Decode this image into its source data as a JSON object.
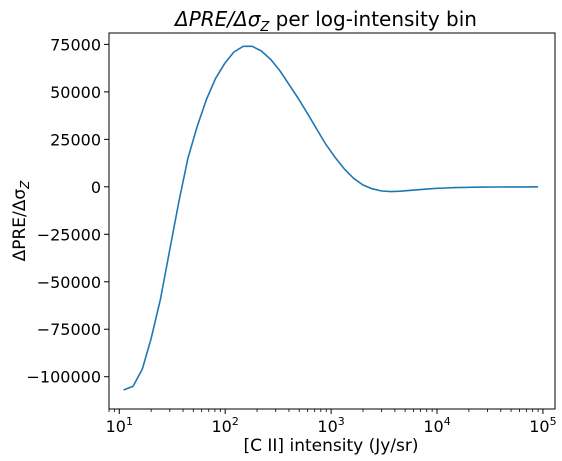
{
  "chart_data": {
    "type": "line",
    "title": "ΔPRE/Δσ_Z per log-intensity bin",
    "title_parts": {
      "main": "ΔPRE/Δσ",
      "sub": "Z",
      "rest": " per log-intensity bin"
    },
    "xlabel": "[C II] intensity (Jy/sr)",
    "ylabel": "ΔPRE/Δσ_Z",
    "ylabel_parts": {
      "main": "ΔPRE/Δσ",
      "sub": "Z"
    },
    "x_scale": "log",
    "xlim": [
      8,
      130000
    ],
    "ylim": [
      -117000,
      81000
    ],
    "x_ticks": [
      {
        "value": 10,
        "base": "10",
        "exp": "1"
      },
      {
        "value": 100,
        "base": "10",
        "exp": "2"
      },
      {
        "value": 1000,
        "base": "10",
        "exp": "3"
      },
      {
        "value": 10000,
        "base": "10",
        "exp": "4"
      },
      {
        "value": 100000,
        "base": "10",
        "exp": "5"
      }
    ],
    "y_ticks": [
      {
        "value": 75000,
        "label": "75000"
      },
      {
        "value": 50000,
        "label": "50000"
      },
      {
        "value": 25000,
        "label": "25000"
      },
      {
        "value": 0,
        "label": "0"
      },
      {
        "value": -25000,
        "label": "−25000"
      },
      {
        "value": -50000,
        "label": "−50000"
      },
      {
        "value": -75000,
        "label": "−75000"
      },
      {
        "value": -100000,
        "label": "−100000"
      }
    ],
    "grid": false,
    "series": [
      {
        "color": "#1f77b4",
        "x": [
          11.0,
          13.5,
          16.5,
          20.0,
          24.5,
          30.0,
          36.5,
          44.5,
          54.5,
          66.5,
          81.0,
          99.0,
          121.0,
          148.0,
          180.0,
          220.0,
          270.0,
          330.0,
          400.0,
          490.0,
          600.0,
          730.0,
          890.0,
          1090.0,
          1330.0,
          1630.0,
          1990.0,
          2430.0,
          3000.0,
          3700.0,
          4500.0,
          5500.0,
          6700.0,
          8200.0,
          10000.0,
          12200.0,
          14900.0,
          18200.0,
          22200.0,
          27100.0,
          33100.0,
          40400.0,
          49300.0,
          60200.0,
          73500.0,
          90000.0
        ],
        "y": [
          -107000,
          -105000,
          -96000,
          -80000,
          -59000,
          -33000,
          -8000,
          15000,
          32000,
          46000,
          57000,
          65000,
          71000,
          74000,
          74000,
          71500,
          67000,
          61000,
          54000,
          46500,
          38500,
          30500,
          22500,
          15500,
          9500,
          4500,
          1000,
          -1000,
          -2200,
          -2500,
          -2300,
          -1900,
          -1500,
          -1100,
          -800,
          -600,
          -400,
          -300,
          -200,
          -150,
          -100,
          -80,
          -50,
          -30,
          -20,
          0
        ]
      }
    ]
  }
}
